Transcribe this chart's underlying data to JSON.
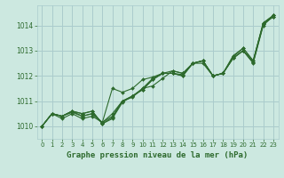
{
  "background_color": "#cce8e0",
  "grid_color": "#aacccc",
  "line_color": "#2d6a2d",
  "marker_color": "#2d6a2d",
  "title": "Graphe pression niveau de la mer (hPa)",
  "xlim": [
    -0.5,
    23.5
  ],
  "ylim": [
    1009.5,
    1014.8
  ],
  "yticks": [
    1010,
    1011,
    1012,
    1013,
    1014
  ],
  "xticks": [
    0,
    1,
    2,
    3,
    4,
    5,
    6,
    7,
    8,
    9,
    10,
    11,
    12,
    13,
    14,
    15,
    16,
    17,
    18,
    19,
    20,
    21,
    22,
    23
  ],
  "series": [
    {
      "x": [
        0,
        1,
        2,
        3,
        4,
        5,
        6,
        7,
        8,
        9,
        10,
        11,
        12,
        13,
        14,
        15,
        16,
        17,
        18,
        19,
        20,
        21,
        22,
        23
      ],
      "y": [
        1010.0,
        1010.5,
        1010.4,
        1010.6,
        1010.5,
        1010.6,
        1010.1,
        1010.35,
        1011.0,
        1011.15,
        1011.5,
        1011.6,
        1011.9,
        1012.2,
        1012.1,
        1012.5,
        1012.6,
        1012.0,
        1012.1,
        1012.8,
        1013.1,
        1012.6,
        1014.1,
        1014.4
      ]
    },
    {
      "x": [
        0,
        1,
        2,
        3,
        4,
        5,
        6,
        7,
        8,
        9,
        10,
        11,
        12,
        13,
        14,
        15,
        16,
        17,
        18,
        19,
        20,
        21,
        22,
        23
      ],
      "y": [
        1010.0,
        1010.5,
        1010.3,
        1010.5,
        1010.3,
        1010.4,
        1010.15,
        1010.4,
        1011.0,
        1011.2,
        1011.45,
        1011.85,
        1012.1,
        1012.1,
        1012.05,
        1012.5,
        1012.5,
        1012.0,
        1012.1,
        1012.7,
        1013.0,
        1012.5,
        1014.0,
        1014.4
      ]
    },
    {
      "x": [
        0,
        1,
        2,
        3,
        4,
        5,
        6,
        7,
        8,
        9,
        10,
        11,
        12,
        13,
        14,
        15,
        16,
        17,
        18,
        19,
        20,
        21,
        22,
        23
      ],
      "y": [
        1010.0,
        1010.5,
        1010.4,
        1010.6,
        1010.4,
        1010.5,
        1010.15,
        1010.5,
        1011.0,
        1011.2,
        1011.45,
        1011.85,
        1012.1,
        1012.1,
        1012.0,
        1012.5,
        1012.6,
        1012.0,
        1012.1,
        1012.7,
        1013.0,
        1012.55,
        1014.05,
        1014.35
      ]
    },
    {
      "x": [
        0,
        1,
        2,
        3,
        4,
        5,
        6,
        7,
        8,
        9,
        10,
        11,
        12,
        13,
        14,
        15,
        16,
        17,
        18,
        19,
        20,
        21,
        22,
        23
      ],
      "y": [
        1010.0,
        1010.5,
        1010.4,
        1010.55,
        1010.4,
        1010.5,
        1010.15,
        1011.5,
        1011.35,
        1011.5,
        1011.85,
        1011.95,
        1012.1,
        1012.1,
        1012.0,
        1012.5,
        1012.6,
        1012.0,
        1012.1,
        1012.7,
        1013.0,
        1012.55,
        1014.05,
        1014.35
      ]
    },
    {
      "x": [
        0,
        1,
        2,
        3,
        4,
        5,
        6,
        7,
        8,
        9,
        10,
        11,
        12,
        13,
        14,
        15,
        16,
        17,
        18,
        19,
        20,
        21,
        22,
        23
      ],
      "y": [
        1010.0,
        1010.5,
        1010.4,
        1010.6,
        1010.5,
        1010.6,
        1010.1,
        1010.3,
        1010.95,
        1011.2,
        1011.5,
        1011.9,
        1012.1,
        1012.2,
        1012.1,
        1012.5,
        1012.6,
        1012.0,
        1012.1,
        1012.75,
        1013.1,
        1012.6,
        1014.1,
        1014.4
      ]
    }
  ]
}
